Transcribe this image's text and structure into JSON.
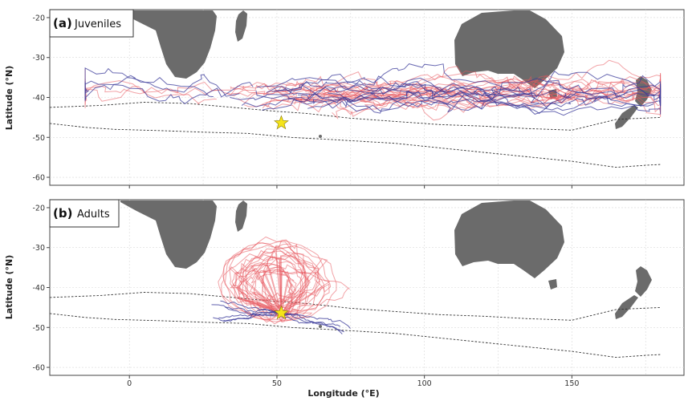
{
  "figure": {
    "xlabel": "Longitude (°E)",
    "ylabel": "Latitude (°N)",
    "x_ticks": [
      0,
      50,
      100,
      150
    ],
    "y_ticks": [
      -20,
      -30,
      -40,
      -50,
      -60
    ],
    "x_range": [
      -27,
      188
    ],
    "y_range": [
      -62,
      -18
    ],
    "colors": {
      "juvenile_track": "#e8585e",
      "adult_track": "#3a3a9a",
      "land": "#6b6b6b",
      "front": "#333333",
      "colony_star": "#f5e41a",
      "grid": "#d9d9d9"
    }
  },
  "panels": [
    {
      "tag": "(a)",
      "label": "Juveniles"
    },
    {
      "tag": "(b)",
      "label": "Adults"
    }
  ],
  "colony": {
    "lon": 51.5,
    "lat": -46.4
  },
  "chart_data": {
    "type": "map",
    "colony_location": {
      "lon": 51.5,
      "lat": -46.4
    },
    "fronts": [
      {
        "lon": [
          -27,
          -10,
          5,
          20,
          35,
          50,
          60,
          75,
          90,
          105,
          120,
          135,
          150,
          165,
          180
        ],
        "lat": [
          -42.5,
          -42,
          -41.2,
          -41.5,
          -42.5,
          -43.5,
          -44,
          -45.2,
          -46,
          -46.8,
          -47.2,
          -47.8,
          -48.2,
          -45.5,
          -45
        ]
      },
      {
        "lon": [
          -27,
          -15,
          -5,
          10,
          25,
          40,
          55,
          70,
          90,
          110,
          130,
          150,
          165,
          175,
          180
        ],
        "lat": [
          -46.5,
          -47.5,
          -48,
          -48.3,
          -48.7,
          -49,
          -50,
          -50.6,
          -51.5,
          -53,
          -54.5,
          -56,
          -57.5,
          -57,
          -56.8
        ]
      }
    ]
  }
}
